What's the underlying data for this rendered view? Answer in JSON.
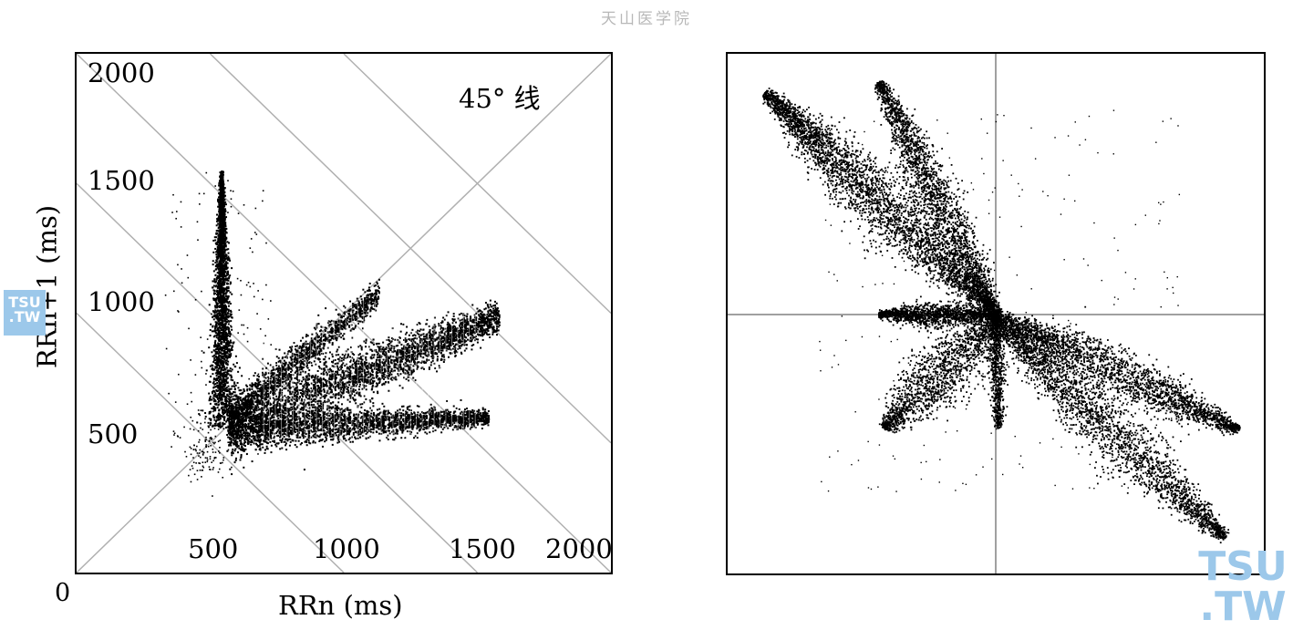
{
  "header": {
    "title": "天山医学院"
  },
  "watermark": {
    "line1": "TSU",
    "line2": ".TW"
  },
  "chart_data": [
    {
      "type": "scatter",
      "title": "",
      "xlabel": "RRn (ms)",
      "ylabel": "RRn+1 (ms)",
      "origin_label": "0",
      "xlim": [
        0,
        2000
      ],
      "ylim": [
        0,
        2000
      ],
      "x_ticks": [
        "500",
        "1000",
        "1500",
        "2000"
      ],
      "y_ticks": [
        "500",
        "1000",
        "1500",
        "2000"
      ],
      "annotation": "45° 线",
      "reference_lines": {
        "identity": "y = x",
        "perpendicular_sums": [
          1000,
          1500,
          2000,
          2500,
          3000
        ]
      },
      "clusters": [
        {
          "name": "",
          "x_range": [
            480,
            650
          ],
          "y_range": [
            560,
            1550
          ]
        },
        {
          "name": "",
          "x_range": [
            550,
            1140
          ],
          "y_range": [
            560,
            1090
          ]
        },
        {
          "name": "",
          "x_range": [
            560,
            1590
          ],
          "y_range": [
            500,
            1000
          ]
        },
        {
          "name": "",
          "x_range": [
            560,
            1550
          ],
          "y_range": [
            500,
            740
          ]
        }
      ],
      "color": "#000000",
      "grid_color": "#b0b0b0"
    },
    {
      "type": "scatter",
      "title": "",
      "xlabel": "",
      "ylabel": "",
      "grid": "center crosshair",
      "color": "#000000",
      "grid_color": "#a0a0a0"
    }
  ]
}
